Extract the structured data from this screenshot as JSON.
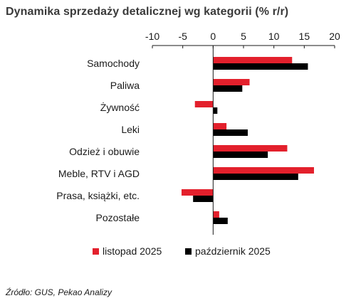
{
  "chart_data": {
    "type": "bar",
    "orientation": "horizontal",
    "title": "Dynamika sprzedaży detalicznej wg kategorii (% r/r)",
    "categories": [
      "Samochody",
      "Paliwa",
      "Żywność",
      "Leki",
      "Odzież i obuwie",
      "Meble, RTV i AGD",
      "Prasa, książki, etc.",
      "Pozostałe"
    ],
    "series": [
      {
        "name": "listopad 2025",
        "color": "#e3202c",
        "values": [
          13.0,
          6.0,
          -3.0,
          2.2,
          12.2,
          16.6,
          -5.2,
          1.0
        ]
      },
      {
        "name": "październik 2025",
        "color": "#000000",
        "values": [
          15.6,
          4.8,
          0.7,
          5.7,
          9.0,
          14.0,
          -3.3,
          2.4
        ]
      }
    ],
    "xlim": [
      -10,
      20
    ],
    "xticks": [
      -10,
      -5,
      0,
      5,
      10,
      15,
      20
    ],
    "legend_position": "bottom",
    "source": "Źródło: GUS, Pekao Analizy"
  }
}
